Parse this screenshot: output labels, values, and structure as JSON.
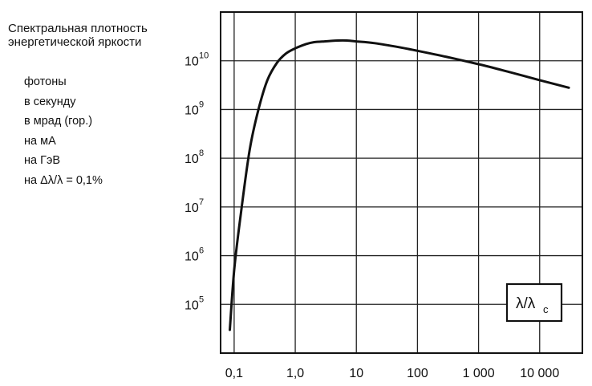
{
  "chart_data": {
    "type": "line",
    "ylabel_lines": [
      "Спектральная плотность",
      "энергетической яркости"
    ],
    "units_lines": [
      "фотоны",
      "в секунду",
      "в мрад (гор.)",
      "на мА",
      "на ГэВ",
      "на  Δλ/λ = 0,1%"
    ],
    "x_scale": "log",
    "y_scale": "log",
    "xlim": [
      0.06,
      50000
    ],
    "ylim": [
      10000,
      100000000000
    ],
    "x_ticks": [
      {
        "value": 0.1,
        "label": "0,1"
      },
      {
        "value": 1,
        "label": "1,0"
      },
      {
        "value": 10,
        "label": "10"
      },
      {
        "value": 100,
        "label": "100"
      },
      {
        "value": 1000,
        "label": "1 000"
      },
      {
        "value": 10000,
        "label": "10 000"
      }
    ],
    "y_ticks": [
      {
        "value": 100000,
        "base": "10",
        "exp": "5"
      },
      {
        "value": 1000000,
        "base": "10",
        "exp": "6"
      },
      {
        "value": 10000000,
        "base": "10",
        "exp": "7"
      },
      {
        "value": 100000000,
        "base": "10",
        "exp": "8"
      },
      {
        "value": 1000000000,
        "base": "10",
        "exp": "9"
      },
      {
        "value": 10000000000,
        "base": "10",
        "exp": "10"
      }
    ],
    "grid": true,
    "legend_box": {
      "text": "λ/λ",
      "sub": "c",
      "placement": "bottom-right"
    },
    "series": [
      {
        "x": [
          0.085,
          0.1,
          0.13,
          0.18,
          0.25,
          0.35,
          0.5,
          0.7,
          1.0,
          1.5,
          2,
          3,
          5,
          7,
          10,
          20,
          50,
          100,
          300,
          1000,
          3000,
          10000,
          30000
        ],
        "y": [
          30000,
          500000,
          8000000,
          150000000,
          1000000000,
          4000000000,
          9000000000,
          14000000000,
          18000000000,
          22000000000,
          24000000000,
          25000000000,
          26000000000,
          26000000000,
          25000000000,
          23000000000,
          19000000000,
          16000000000,
          12000000000,
          8500000000,
          6000000000,
          4000000000,
          2800000000
        ]
      }
    ]
  }
}
